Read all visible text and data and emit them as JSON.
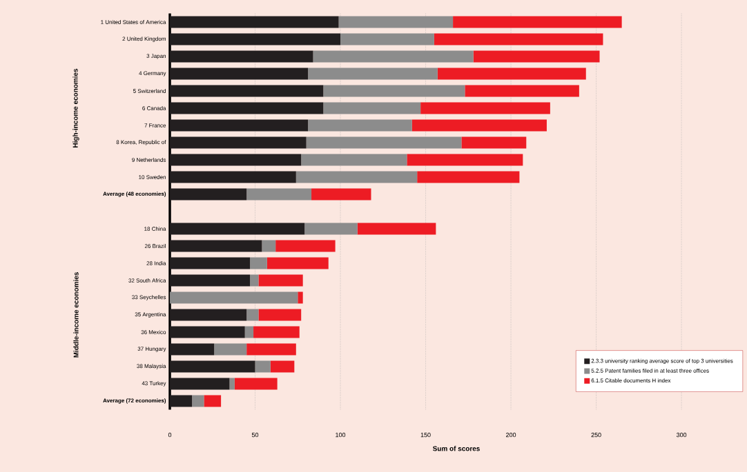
{
  "chart_data": {
    "type": "bar",
    "orientation": "horizontal",
    "stacked": true,
    "xlabel": "Sum of scores",
    "annotations": [
      "High-income economies",
      "Middle-income economies"
    ],
    "categories": [
      "1 United States of America",
      "2 United Kingdom",
      "3 Japan",
      "4 Germany",
      "5 Switzerland",
      "6 Canada",
      "7 France",
      "8 Korea, Republic of",
      "9 Netherlands",
      "10 Sweden",
      "Average (48 economies)",
      null,
      "18 China",
      "26 Brazil",
      "28 India",
      "32 South Africa",
      "33 Seychelles",
      "35 Argentina",
      "36 Mexico",
      "37 Hungary",
      "38 Malaysia",
      "43 Turkey",
      "Average (72 economies)"
    ],
    "series": [
      {
        "name": "2.3.3 university ranking average score of top 3 universities",
        "color": "#231f20",
        "values": [
          99,
          100,
          84,
          81,
          90,
          90,
          81,
          80,
          77,
          74,
          45,
          null,
          79,
          54,
          47,
          47,
          0,
          45,
          44,
          26,
          50,
          35,
          13
        ]
      },
      {
        "name": "5.2.5 Patent families filed in at least three offices",
        "color": "#8c8c8c",
        "values": [
          67,
          55,
          94,
          76,
          83,
          57,
          61,
          91,
          62,
          71,
          38,
          null,
          31,
          8,
          10,
          5,
          75,
          7,
          5,
          19,
          9,
          3,
          7
        ]
      },
      {
        "name": "6.1.5 Citable documents H index",
        "color": "#ed1c24",
        "values": [
          99,
          99,
          74,
          87,
          67,
          76,
          79,
          38,
          68,
          60,
          35,
          null,
          46,
          35,
          36,
          26,
          3,
          25,
          27,
          29,
          14,
          25,
          10
        ]
      }
    ],
    "xlim": [
      0,
      336
    ],
    "xticks": [
      0,
      50,
      100,
      150,
      200,
      250,
      300
    ],
    "grid": "x",
    "legend": "bottom right"
  }
}
